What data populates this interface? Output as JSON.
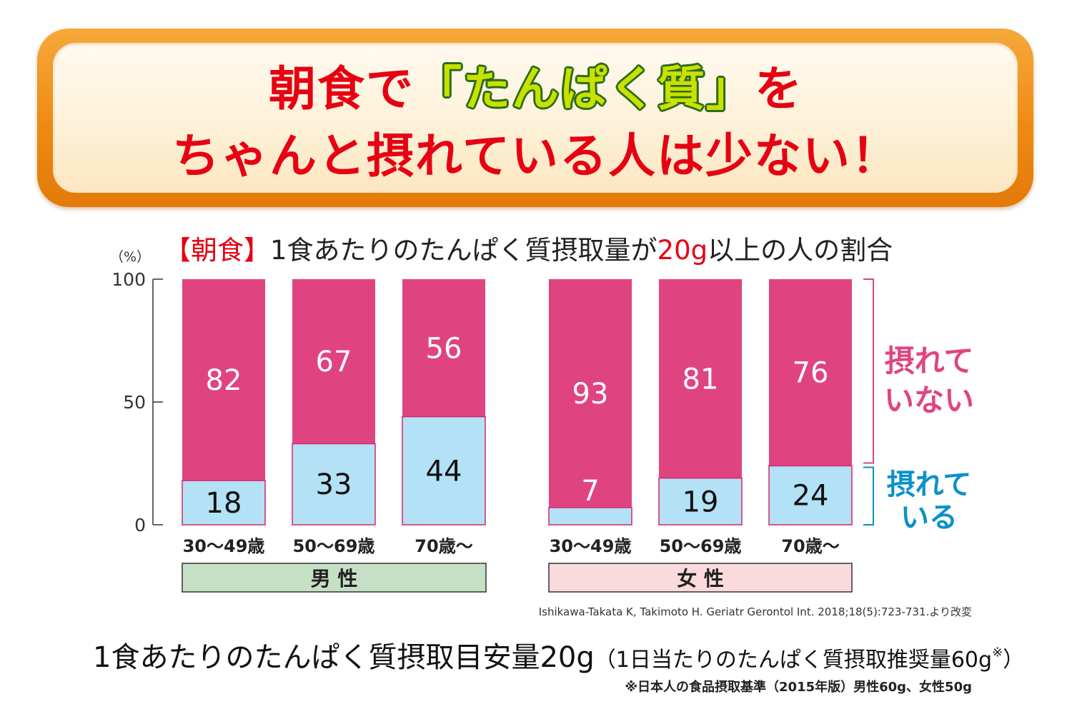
{
  "headline": {
    "line1_pre": "朝食で",
    "line1_highlight": "「たんぱく質」",
    "line1_post": "を",
    "line2": "ちゃんと摂れている人は少ない！"
  },
  "chart_data": {
    "type": "bar",
    "stacked": true,
    "title_prefix": "【朝食】",
    "title_main": "1食あたりのたんぱく質摂取量が",
    "title_highlight": "20g",
    "title_suffix": "以上の人の割合",
    "unit_label": "（%）",
    "ylim": [
      0,
      100
    ],
    "yticks": [
      0,
      50,
      100
    ],
    "grid": false,
    "groups": [
      {
        "label": "男 性",
        "color": "#c6e0c5",
        "categories": [
          "30〜49歳",
          "50〜69歳",
          "70歳〜"
        ]
      },
      {
        "label": "女 性",
        "color": "#fadadd",
        "categories": [
          "30〜49歳",
          "50〜69歳",
          "70歳〜"
        ]
      }
    ],
    "categories": [
      "30〜49歳",
      "50〜69歳",
      "70歳〜",
      "30〜49歳",
      "50〜69歳",
      "70歳〜"
    ],
    "series": [
      {
        "name": "摂れている",
        "color": "#b3e1f6",
        "label_color": "#0b91c9",
        "values": [
          18,
          33,
          44,
          7,
          19,
          24
        ]
      },
      {
        "name": "摂れていない",
        "color": "#e04480",
        "label_color": "#e04480",
        "values": [
          82,
          67,
          56,
          93,
          81,
          76
        ]
      }
    ],
    "legend_placement": "right",
    "legend_labels": {
      "not_taking": [
        "摂れて",
        "いない"
      ],
      "taking": [
        "摂れて",
        "いる"
      ]
    }
  },
  "citation": "Ishikawa-Takata K, Takimoto H. Geriatr Gerontol Int. 2018;18(5):723-731.より改変",
  "bottom_note": {
    "main": "1食あたりのたんぱく質摂取目安量20g",
    "paren": "（1日当たりのたんぱく質摂取推奨量60g",
    "mark": "※",
    "close": "）"
  },
  "footnote": "※日本人の食品摂取基準（2015年版）男性60g、女性50g"
}
